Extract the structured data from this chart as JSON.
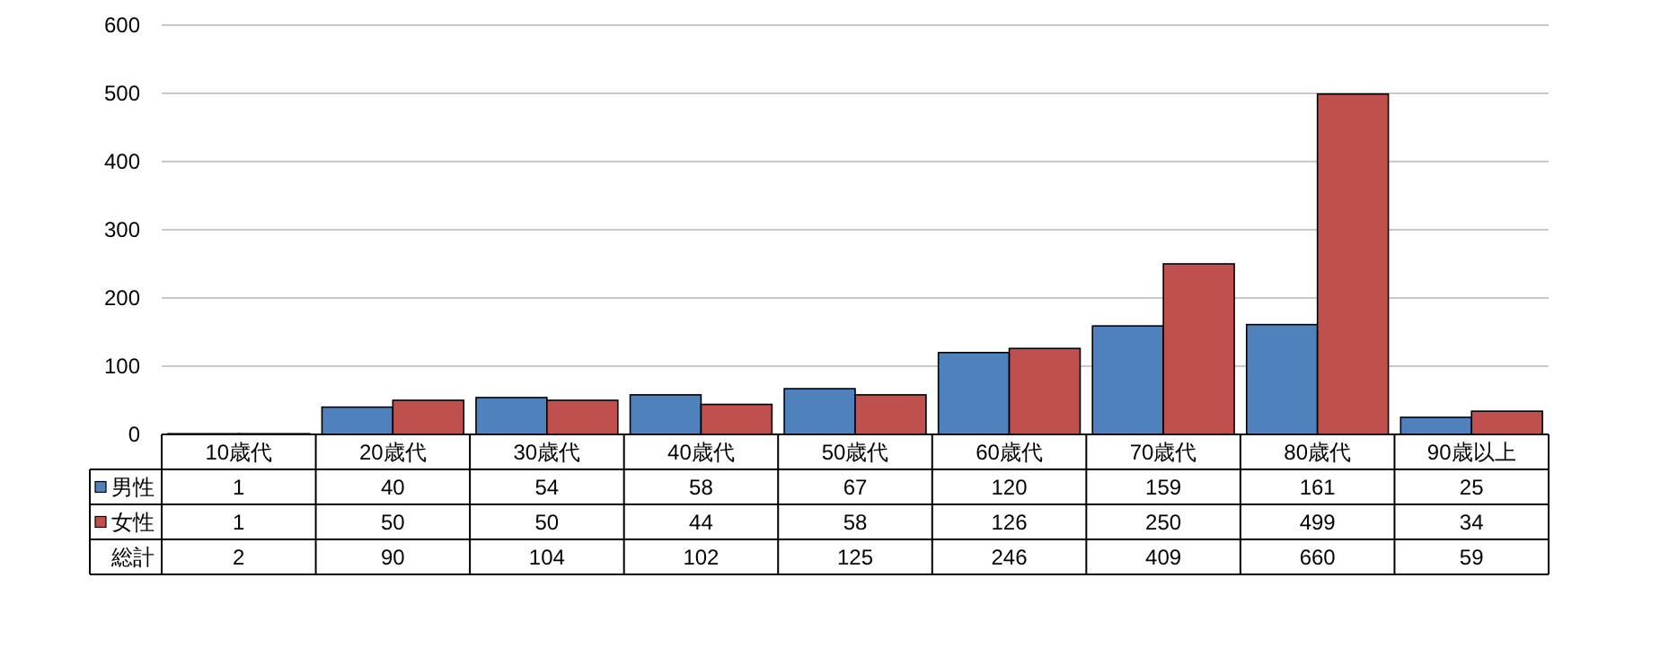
{
  "chart_data": {
    "type": "bar",
    "categories": [
      "10歳代",
      "20歳代",
      "30歳代",
      "40歳代",
      "50歳代",
      "60歳代",
      "70歳代",
      "80歳代",
      "90歳以上"
    ],
    "series": [
      {
        "name": "男性",
        "color": "#4f81bd",
        "values": [
          1,
          40,
          54,
          58,
          67,
          120,
          159,
          161,
          25
        ]
      },
      {
        "name": "女性",
        "color": "#c0504d",
        "values": [
          1,
          50,
          50,
          44,
          58,
          126,
          250,
          499,
          34
        ]
      }
    ],
    "legend": "bottom left",
    "ylim": [
      0,
      600
    ],
    "yticks": [
      0,
      100,
      200,
      300,
      400,
      500,
      600
    ],
    "grid": "y",
    "data_labels": true,
    "annotations": [
      "総計",
      "2",
      "90",
      "104",
      "102",
      "125",
      "246",
      "409",
      "660",
      "59"
    ]
  }
}
